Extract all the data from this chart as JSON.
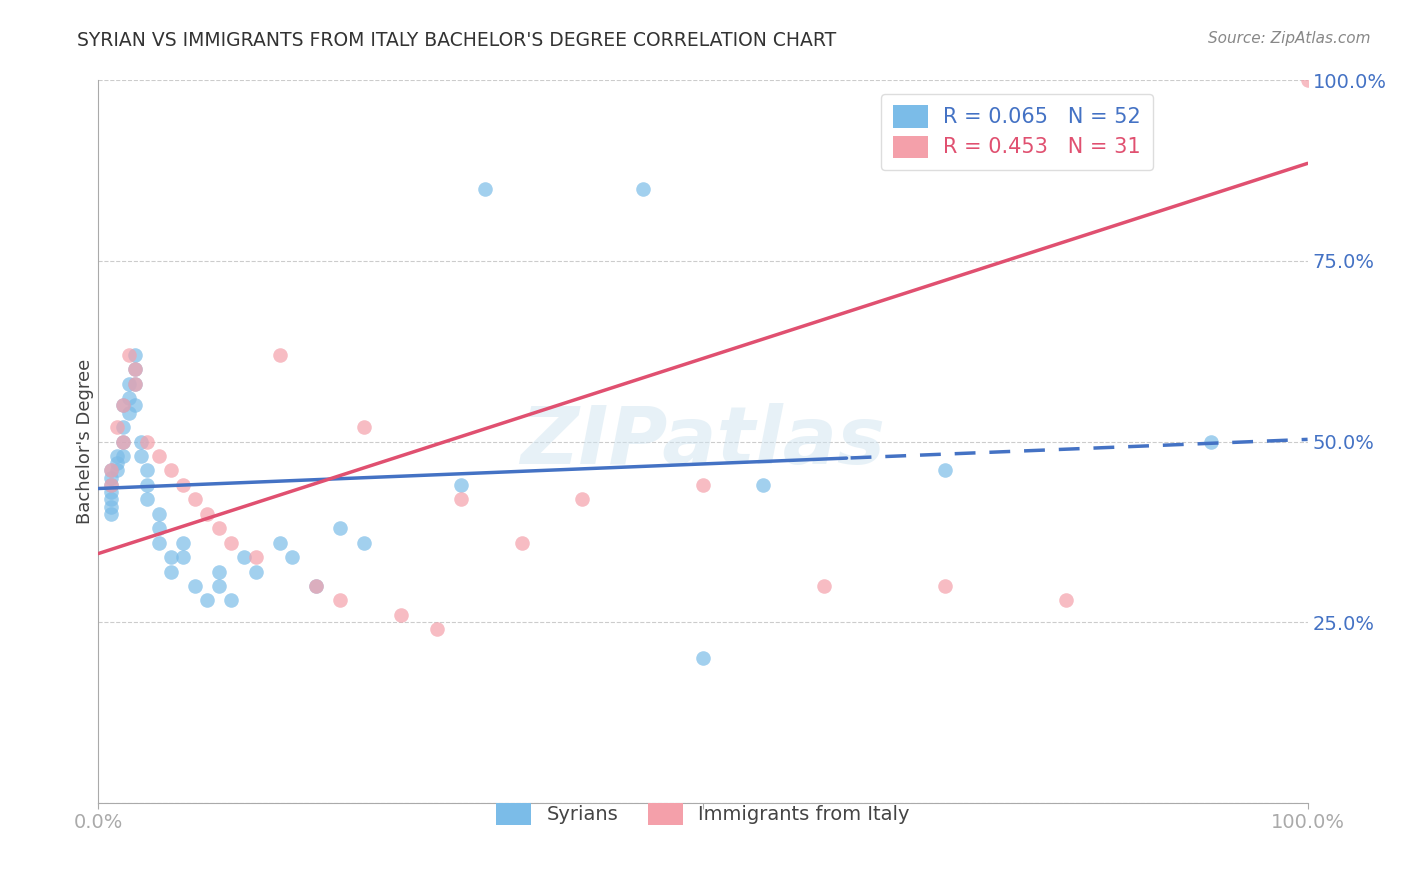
{
  "title": "SYRIAN VS IMMIGRANTS FROM ITALY BACHELOR'S DEGREE CORRELATION CHART",
  "source": "Source: ZipAtlas.com",
  "ylabel": "Bachelor's Degree",
  "r_syrian": 0.065,
  "n_syrian": 52,
  "r_italy": 0.453,
  "n_italy": 31,
  "xlim": [
    0.0,
    1.0
  ],
  "ylim": [
    0.0,
    1.0
  ],
  "color_syrian": "#7bbce8",
  "color_italy": "#f4a0aa",
  "color_trendline_syrian": "#4472c4",
  "color_trendline_italy": "#e05070",
  "trendline_blue_solid_end": 0.62,
  "blue_intercept": 0.435,
  "blue_slope": 0.068,
  "pink_intercept": 0.345,
  "pink_slope": 0.54,
  "watermark_text": "ZIPatlas",
  "background_color": "#ffffff",
  "grid_color": "#cccccc",
  "tick_color": "#4472c4",
  "syrian_x": [
    0.01,
    0.01,
    0.01,
    0.01,
    0.01,
    0.01,
    0.01,
    0.015,
    0.015,
    0.015,
    0.02,
    0.02,
    0.02,
    0.02,
    0.025,
    0.025,
    0.025,
    0.03,
    0.03,
    0.03,
    0.03,
    0.035,
    0.035,
    0.04,
    0.04,
    0.04,
    0.05,
    0.05,
    0.05,
    0.06,
    0.06,
    0.07,
    0.07,
    0.08,
    0.09,
    0.1,
    0.1,
    0.11,
    0.12,
    0.13,
    0.15,
    0.16,
    0.18,
    0.2,
    0.22,
    0.3,
    0.32,
    0.45,
    0.5,
    0.55,
    0.7,
    0.92
  ],
  "syrian_y": [
    0.46,
    0.45,
    0.44,
    0.43,
    0.42,
    0.41,
    0.4,
    0.48,
    0.47,
    0.46,
    0.55,
    0.52,
    0.5,
    0.48,
    0.58,
    0.56,
    0.54,
    0.62,
    0.6,
    0.58,
    0.55,
    0.5,
    0.48,
    0.46,
    0.44,
    0.42,
    0.4,
    0.38,
    0.36,
    0.34,
    0.32,
    0.36,
    0.34,
    0.3,
    0.28,
    0.32,
    0.3,
    0.28,
    0.34,
    0.32,
    0.36,
    0.34,
    0.3,
    0.38,
    0.36,
    0.44,
    0.85,
    0.85,
    0.2,
    0.44,
    0.46,
    0.5
  ],
  "italy_x": [
    0.01,
    0.01,
    0.015,
    0.02,
    0.02,
    0.025,
    0.03,
    0.03,
    0.04,
    0.05,
    0.06,
    0.07,
    0.08,
    0.09,
    0.1,
    0.11,
    0.13,
    0.15,
    0.18,
    0.2,
    0.22,
    0.25,
    0.28,
    0.3,
    0.35,
    0.4,
    0.5,
    0.6,
    0.7,
    0.8,
    1.0
  ],
  "italy_y": [
    0.46,
    0.44,
    0.52,
    0.55,
    0.5,
    0.62,
    0.6,
    0.58,
    0.5,
    0.48,
    0.46,
    0.44,
    0.42,
    0.4,
    0.38,
    0.36,
    0.34,
    0.62,
    0.3,
    0.28,
    0.52,
    0.26,
    0.24,
    0.42,
    0.36,
    0.42,
    0.44,
    0.3,
    0.3,
    0.28,
    1.0
  ]
}
